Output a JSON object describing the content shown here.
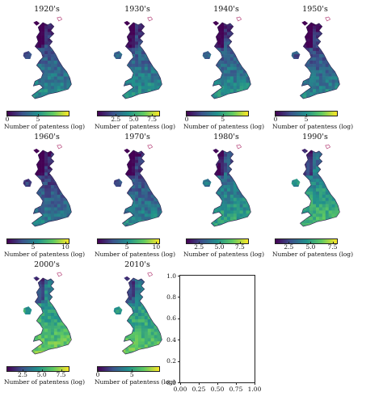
{
  "chart_data": [
    {
      "type": "heatmap",
      "title": "1920's",
      "colorbar": {
        "label": "Number of patentess (log)",
        "ticks": [
          "0",
          "5"
        ],
        "range": [
          0,
          10
        ]
      }
    },
    {
      "type": "heatmap",
      "title": "1930's",
      "colorbar": {
        "label": "Number of patentess (log)",
        "ticks": [
          "2.5",
          "5.0",
          "7.5"
        ],
        "range": [
          0,
          8.5
        ]
      }
    },
    {
      "type": "heatmap",
      "title": "1940's",
      "colorbar": {
        "label": "Number of patentess (log)",
        "ticks": [
          "0",
          "5"
        ],
        "range": [
          0,
          8.5
        ]
      }
    },
    {
      "type": "heatmap",
      "title": "1950's",
      "colorbar": {
        "label": "Number of patentess (log)",
        "ticks": [
          "0",
          "5"
        ],
        "range": [
          0,
          10
        ]
      }
    },
    {
      "type": "heatmap",
      "title": "1960's",
      "colorbar": {
        "label": "Number of patentess (log)",
        "ticks": [
          "5",
          "10"
        ],
        "range": [
          1,
          10.5
        ]
      }
    },
    {
      "type": "heatmap",
      "title": "1970's",
      "colorbar": {
        "label": "Number of patentess (log)",
        "ticks": [
          "5",
          "10"
        ],
        "range": [
          0,
          10.5
        ]
      }
    },
    {
      "type": "heatmap",
      "title": "1980's",
      "colorbar": {
        "label": "Number of patentess (log)",
        "ticks": [
          "2.5",
          "5.0",
          "7.5"
        ],
        "range": [
          1,
          8.5
        ]
      }
    },
    {
      "type": "heatmap",
      "title": "1990's",
      "colorbar": {
        "label": "Number of patentess (log)",
        "ticks": [
          "2.5",
          "5.0",
          "7.5"
        ],
        "range": [
          1,
          8
        ]
      }
    },
    {
      "type": "heatmap",
      "title": "2000's",
      "colorbar": {
        "label": "Number of patentess (log)",
        "ticks": [
          "2.5",
          "5.0",
          "7.5"
        ],
        "range": [
          0.5,
          8.5
        ]
      }
    },
    {
      "type": "heatmap",
      "title": "2010's",
      "colorbar": {
        "label": "Number of patentess (log)",
        "ticks": [
          "0",
          "5"
        ],
        "range": [
          0,
          9
        ]
      }
    },
    {
      "type": "scatter",
      "title": "",
      "xlim": [
        0.0,
        1.0
      ],
      "ylim": [
        0.0,
        1.0
      ],
      "x_ticks": [
        "0.00",
        "0.25",
        "0.50",
        "0.75",
        "1.00"
      ],
      "y_ticks": [
        "0.0",
        "0.2",
        "0.4",
        "0.6",
        "0.8",
        "1.0"
      ],
      "series": []
    }
  ],
  "colors": {
    "viridis": [
      "#440154",
      "#3b528b",
      "#21918c",
      "#5ec962",
      "#fde725"
    ],
    "map_level": [
      0.42,
      0.44,
      0.44,
      0.4,
      0.36,
      0.4,
      0.52,
      0.62,
      0.7,
      0.68
    ]
  }
}
